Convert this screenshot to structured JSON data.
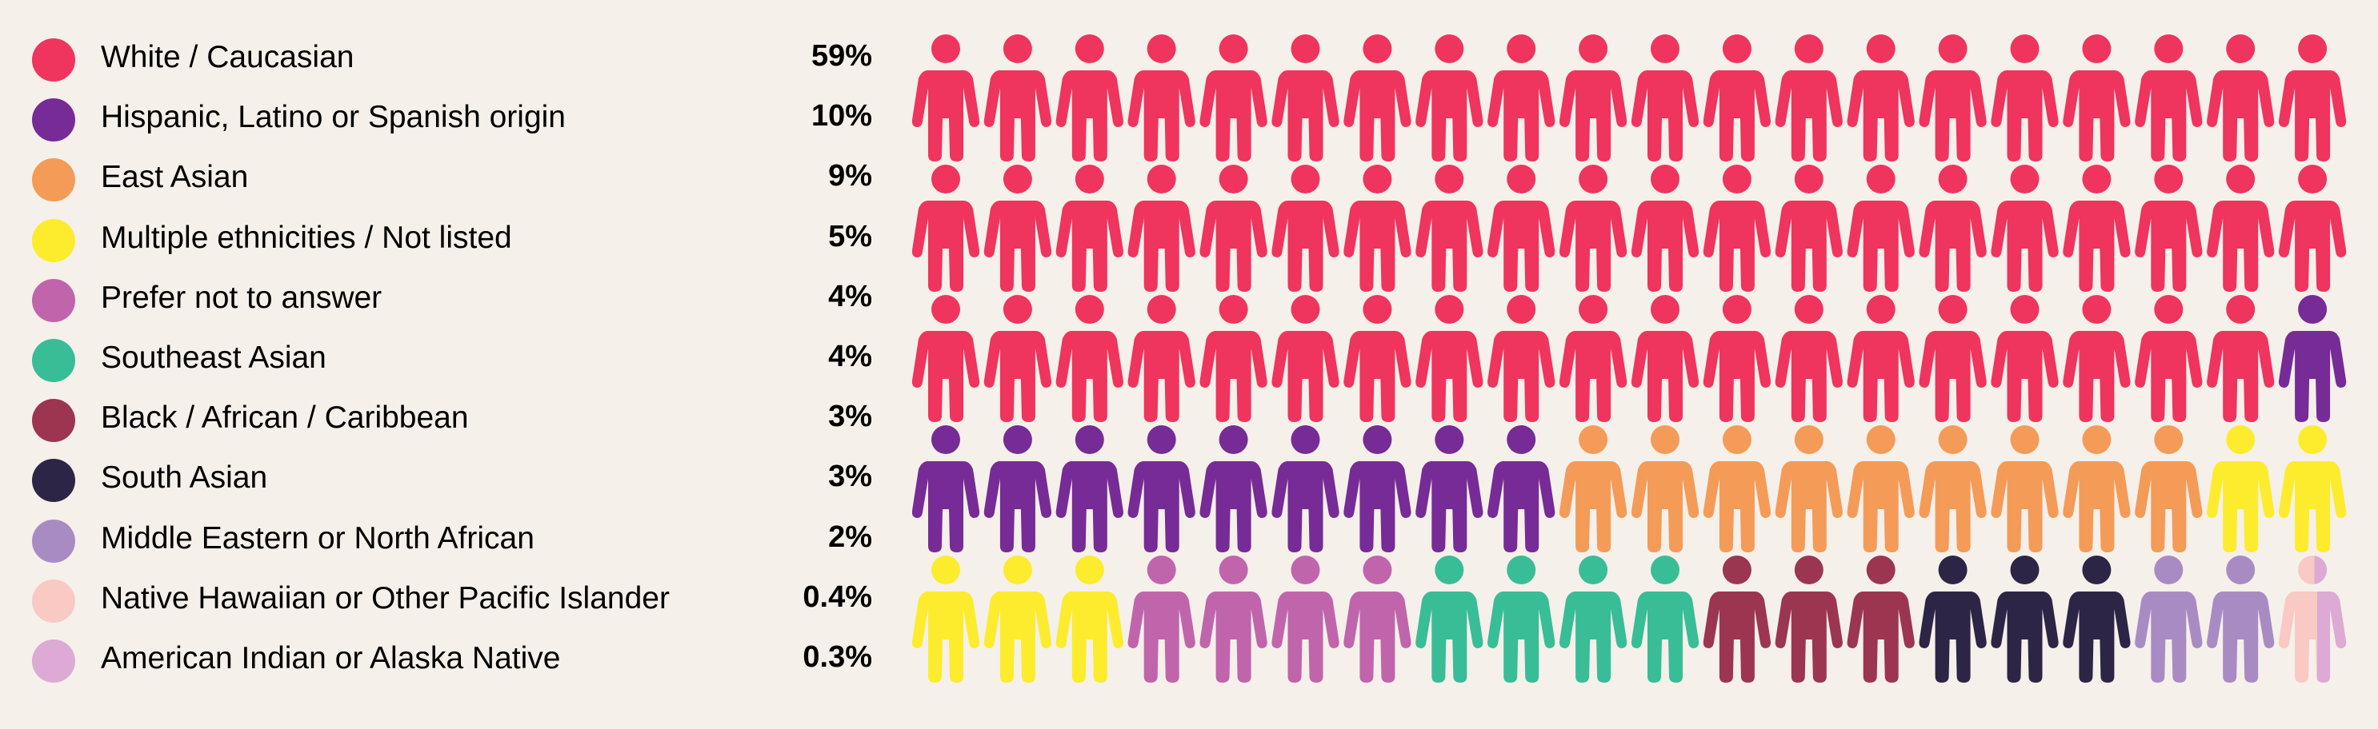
{
  "chart_data": {
    "type": "pictogram",
    "unit": "person",
    "total_icons": 100,
    "rows": 5,
    "columns": 20,
    "categories": [
      {
        "label": "White / Caucasian",
        "value": "59%",
        "percent": 59,
        "icons": 59,
        "color": "#ef345e"
      },
      {
        "label": "Hispanic, Latino or Spanish origin",
        "value": "10%",
        "percent": 10,
        "icons": 10,
        "color": "#772b96"
      },
      {
        "label": "East Asian",
        "value": "9%",
        "percent": 9,
        "icons": 9,
        "color": "#f49b58"
      },
      {
        "label": "Multiple ethnicities / Not listed",
        "value": "5%",
        "percent": 5,
        "icons": 5,
        "color": "#fcec2d"
      },
      {
        "label": "Prefer not to answer",
        "value": "4%",
        "percent": 4,
        "icons": 4,
        "color": "#c065ac"
      },
      {
        "label": "Southeast Asian",
        "value": "4%",
        "percent": 4,
        "icons": 4,
        "color": "#38bd97"
      },
      {
        "label": "Black / African / Caribbean",
        "value": "3%",
        "percent": 3,
        "icons": 3,
        "color": "#9c3550"
      },
      {
        "label": "South Asian",
        "value": "3%",
        "percent": 3,
        "icons": 3,
        "color": "#2c2545"
      },
      {
        "label": "Middle Eastern or North African",
        "value": "2%",
        "percent": 2,
        "icons": 2,
        "color": "#a98bc4"
      },
      {
        "label": "Native Hawaiian or Other Pacific Islander",
        "value": "0.4%",
        "percent": 0.4,
        "icons": 0.4,
        "color": "#f9c9c4"
      },
      {
        "label": "American Indian or Alaska Native",
        "value": "0.3%",
        "percent": 0.3,
        "icons": 0.3,
        "color": "#dcaad4"
      }
    ]
  }
}
